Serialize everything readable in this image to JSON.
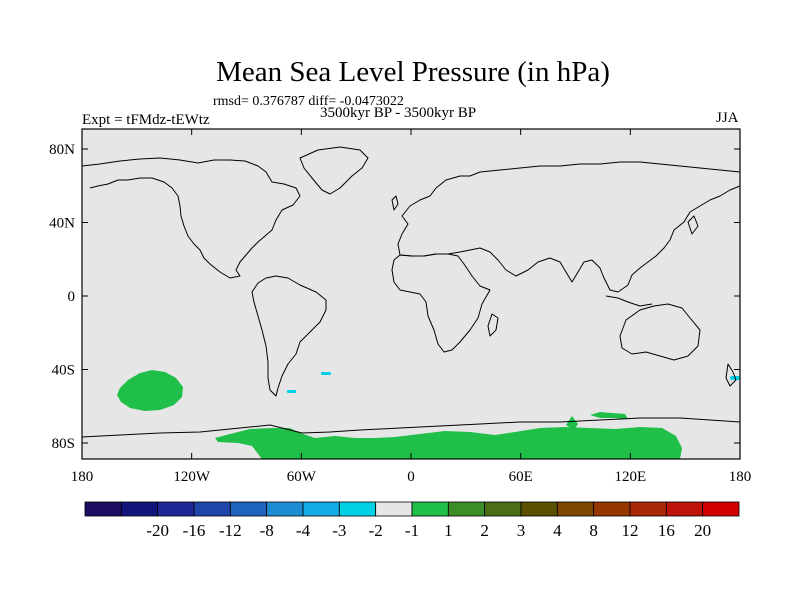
{
  "title": "Mean Sea Level Pressure (in hPa)",
  "stats": "rmsd= 0.376787 diff= -0.0473022",
  "period": "3500kyr BP - 3500kyr BP",
  "experiment": "Expt = tFMdz-tEWtz",
  "season": "JJA",
  "map": {
    "background_color": "#e6e6e6",
    "anomaly_color": "#1fbf4a",
    "negative_color": "#00d2e6",
    "lon_ticks": [
      {
        "lon": -180,
        "label": "180"
      },
      {
        "lon": -120,
        "label": "120W"
      },
      {
        "lon": -60,
        "label": "60W"
      },
      {
        "lon": 0,
        "label": "0"
      },
      {
        "lon": 60,
        "label": "60E"
      },
      {
        "lon": 120,
        "label": "120E"
      },
      {
        "lon": 180,
        "label": "180"
      }
    ],
    "lat_ticks": [
      {
        "lat": 80,
        "label": "80N"
      },
      {
        "lat": 40,
        "label": "40N"
      },
      {
        "lat": 0,
        "label": "0"
      },
      {
        "lat": -40,
        "label": "40S"
      },
      {
        "lat": -80,
        "label": "80S"
      }
    ]
  },
  "colorbar": {
    "colors": [
      "#1e0c64",
      "#14147d",
      "#1e2896",
      "#1e46aa",
      "#1e64be",
      "#1e8cd2",
      "#14aae6",
      "#00d2e6",
      "#e6e6e6",
      "#1fbf4a",
      "#3c8c28",
      "#4b6e14",
      "#5a5000",
      "#7d4600",
      "#963700",
      "#aa280a",
      "#be140a",
      "#d20000"
    ],
    "labels": [
      "-20",
      "-16",
      "-12",
      "-8",
      "-4",
      "-3",
      "-2",
      "-1",
      "1",
      "2",
      "3",
      "4",
      "8",
      "12",
      "16",
      "20"
    ]
  }
}
